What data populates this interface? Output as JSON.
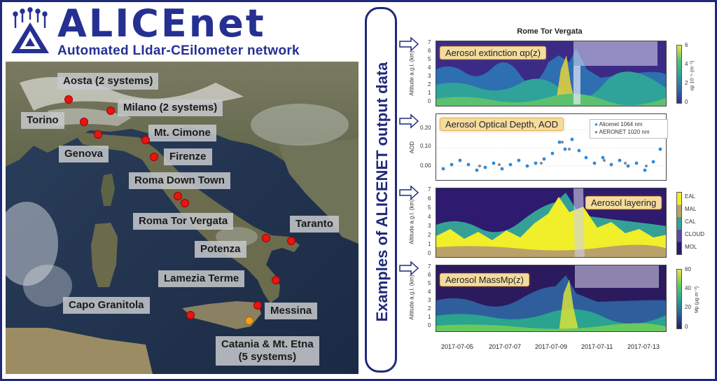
{
  "header": {
    "brand": "ALICEnet",
    "subtitle": "Automated LIdar-CEilometer network"
  },
  "map": {
    "sites": [
      {
        "name": "Aosta  (2 systems)"
      },
      {
        "name": "Milano (2 systems)"
      },
      {
        "name": "Torino"
      },
      {
        "name": "Mt. Cimone"
      },
      {
        "name": "Genova"
      },
      {
        "name": "Firenze"
      },
      {
        "name": "Roma Down Town"
      },
      {
        "name": "Roma  Tor Vergata"
      },
      {
        "name": "Taranto"
      },
      {
        "name": "Potenza"
      },
      {
        "name": "Lamezia Terme"
      },
      {
        "name": "Capo Granitola"
      },
      {
        "name": "Messina"
      },
      {
        "name": "Catania & Mt. Etna",
        "note": "(5 systems)"
      }
    ]
  },
  "banner": "Examples of ALICENET output data",
  "plots": {
    "title": "Rome Tor Vergata",
    "panels": [
      {
        "tag": "Aerosol extinction αp(z)",
        "ylabel": "Altitude a.g.l. (km)",
        "yticks": [
          "0",
          "1",
          "2",
          "3",
          "4",
          "5",
          "6",
          "7"
        ],
        "cbar_label": "αp 10⁻⁵ (m⁻¹)",
        "cbar_ticks": [
          "6",
          "4",
          "2",
          "0"
        ]
      },
      {
        "tag": "Aerosol Optical Depth, AOD",
        "ylabel": "AOD",
        "yticks": [
          "0.00",
          "0.10",
          "0.20"
        ],
        "legend": [
          "Alicenet 1064 nm",
          "AERONET 1020 nm"
        ]
      },
      {
        "tag": "Aerosol layering",
        "ylabel": "Altitude a.g.l. (km)",
        "yticks": [
          "0",
          "1",
          "2",
          "3",
          "4",
          "5",
          "6",
          "7"
        ],
        "classes": [
          "EAL",
          "MAL",
          "CAL",
          "CLOUD",
          "MOL"
        ]
      },
      {
        "tag": "Aerosol MassMp(z)",
        "ylabel": "Altitude a.g.l. (km)",
        "yticks": [
          "0",
          "1",
          "2",
          "3",
          "4",
          "5",
          "6",
          "7"
        ],
        "cbar_label": "Mp (μg m⁻³)",
        "cbar_ticks": [
          "60",
          "40",
          "20",
          "0"
        ]
      }
    ],
    "dates": [
      "2017-07-05",
      "2017-07-07",
      "2017-07-09",
      "2017-07-11",
      "2017-07-13"
    ]
  },
  "colors": {
    "brand": "#253092",
    "site_dot": "#e8150f",
    "etna_dot": "#f1a21a",
    "tag_bg": "#f4dc9f"
  }
}
